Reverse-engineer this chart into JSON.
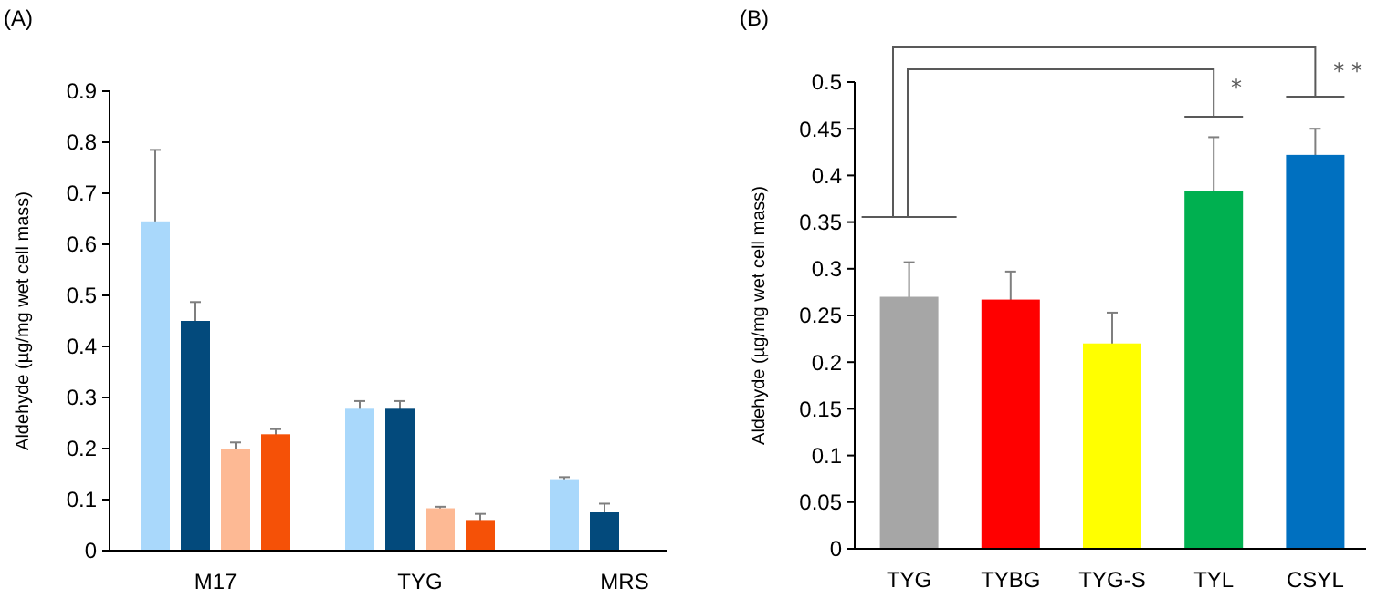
{
  "chart_data": [
    {
      "type": "bar",
      "title": "(A)",
      "ylabel": "Aldehyde (µg/mg wet cell mass)",
      "categories": [
        "M17",
        "TYG",
        "MRS"
      ],
      "ylim": [
        0,
        0.9
      ],
      "yticks": [
        0,
        0.1,
        0.2,
        0.3,
        0.4,
        0.5,
        0.6,
        0.7,
        0.8,
        0.9
      ],
      "grid": false,
      "series": [
        {
          "color": "#a9d8fb",
          "values": [
            0.645,
            0.278,
            0.14
          ],
          "errors": [
            0.14,
            0.015,
            0.004
          ]
        },
        {
          "color": "#034a7c",
          "values": [
            0.45,
            0.278,
            0.075
          ],
          "errors": [
            0.037,
            0.015,
            0.017
          ]
        },
        {
          "color": "#fdb994",
          "values": [
            0.2,
            0.083,
            null
          ],
          "errors": [
            0.012,
            0.003,
            null
          ]
        },
        {
          "color": "#f55107",
          "values": [
            0.228,
            0.06,
            null
          ],
          "errors": [
            0.01,
            0.012,
            null
          ]
        }
      ]
    },
    {
      "type": "bar",
      "title": "(B)",
      "ylabel": "Aldehyde (µg/mg wet cell mass)",
      "categories": [
        "TYG",
        "TYBG",
        "TYG-S",
        "TYL",
        "CSYL"
      ],
      "ylim": [
        0,
        0.5
      ],
      "yticks": [
        0,
        0.05,
        0.1,
        0.15,
        0.2,
        0.25,
        0.3,
        0.35,
        0.4,
        0.45,
        0.5
      ],
      "grid": false,
      "values": [
        0.27,
        0.267,
        0.22,
        0.383,
        0.422
      ],
      "colors": [
        "#a6a6a6",
        "#ff0000",
        "#ffff00",
        "#00b050",
        "#0070c0"
      ],
      "errors": [
        0.037,
        0.03,
        0.033,
        0.058,
        0.028
      ],
      "annotations": [
        "*",
        "* *"
      ]
    }
  ]
}
